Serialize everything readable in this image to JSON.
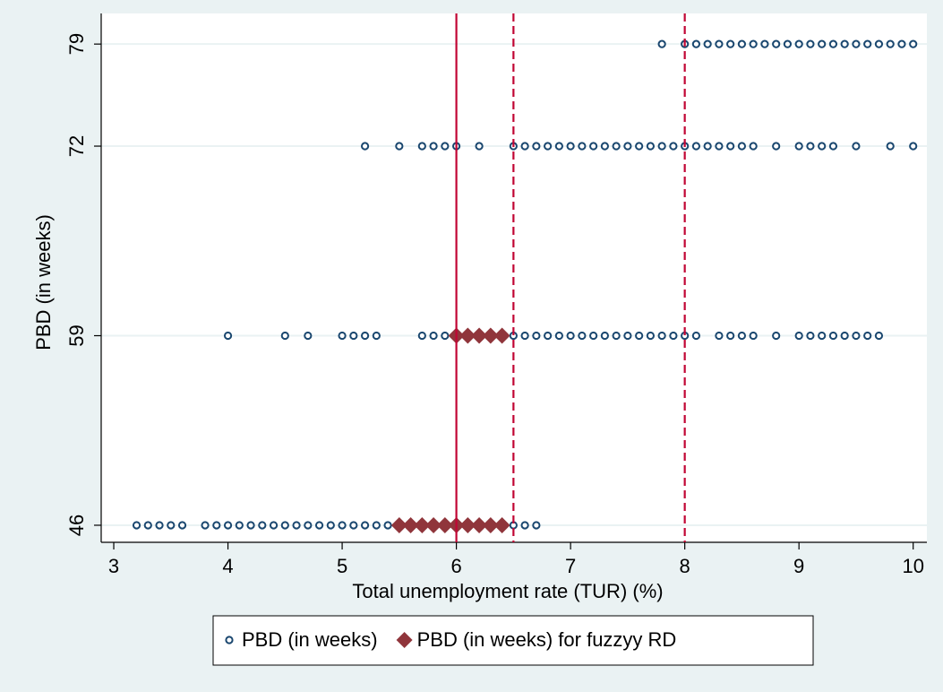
{
  "chart_data": {
    "type": "scatter",
    "xlabel": "Total unemployment rate (TUR) (%)",
    "ylabel": "PBD (in weeks)",
    "xlim": [
      2.89,
      10.12
    ],
    "ylim": [
      44.83,
      81.1
    ],
    "xticks": [
      3,
      4,
      5,
      6,
      7,
      8,
      9,
      10
    ],
    "yticks": [
      46,
      59,
      72,
      79
    ],
    "grid": true,
    "legend": "bottom",
    "xlines": [
      {
        "value": 6,
        "style": "solid",
        "color": "#c10534"
      },
      {
        "value": 6.5,
        "style": "dash",
        "color": "#c10534"
      },
      {
        "value": 8,
        "style": "dash",
        "color": "#c10534"
      }
    ],
    "series": [
      {
        "name": "PBD (in weeks)",
        "color": "#1a476f",
        "marker": "circle",
        "points": [
          [
            7.8,
            79
          ],
          [
            8.0,
            79
          ],
          [
            8.1,
            79
          ],
          [
            8.2,
            79
          ],
          [
            8.3,
            79
          ],
          [
            8.4,
            79
          ],
          [
            8.5,
            79
          ],
          [
            8.6,
            79
          ],
          [
            8.7,
            79
          ],
          [
            8.8,
            79
          ],
          [
            8.9,
            79
          ],
          [
            9.0,
            79
          ],
          [
            9.1,
            79
          ],
          [
            9.2,
            79
          ],
          [
            9.3,
            79
          ],
          [
            9.4,
            79
          ],
          [
            9.5,
            79
          ],
          [
            9.6,
            79
          ],
          [
            9.7,
            79
          ],
          [
            9.8,
            79
          ],
          [
            9.9,
            79
          ],
          [
            10.0,
            79
          ],
          [
            5.2,
            72
          ],
          [
            5.5,
            72
          ],
          [
            5.7,
            72
          ],
          [
            5.8,
            72
          ],
          [
            5.9,
            72
          ],
          [
            6.0,
            72
          ],
          [
            6.2,
            72
          ],
          [
            6.5,
            72
          ],
          [
            6.6,
            72
          ],
          [
            6.7,
            72
          ],
          [
            6.8,
            72
          ],
          [
            6.9,
            72
          ],
          [
            7.0,
            72
          ],
          [
            7.1,
            72
          ],
          [
            7.2,
            72
          ],
          [
            7.3,
            72
          ],
          [
            7.4,
            72
          ],
          [
            7.5,
            72
          ],
          [
            7.6,
            72
          ],
          [
            7.7,
            72
          ],
          [
            7.8,
            72
          ],
          [
            7.9,
            72
          ],
          [
            8.0,
            72
          ],
          [
            8.1,
            72
          ],
          [
            8.2,
            72
          ],
          [
            8.3,
            72
          ],
          [
            8.4,
            72
          ],
          [
            8.5,
            72
          ],
          [
            8.6,
            72
          ],
          [
            8.8,
            72
          ],
          [
            9.0,
            72
          ],
          [
            9.1,
            72
          ],
          [
            9.2,
            72
          ],
          [
            9.3,
            72
          ],
          [
            9.5,
            72
          ],
          [
            9.8,
            72
          ],
          [
            10.0,
            72
          ],
          [
            4.0,
            59
          ],
          [
            4.5,
            59
          ],
          [
            4.7,
            59
          ],
          [
            5.0,
            59
          ],
          [
            5.1,
            59
          ],
          [
            5.2,
            59
          ],
          [
            5.3,
            59
          ],
          [
            5.7,
            59
          ],
          [
            5.8,
            59
          ],
          [
            5.9,
            59
          ],
          [
            6.5,
            59
          ],
          [
            6.6,
            59
          ],
          [
            6.7,
            59
          ],
          [
            6.8,
            59
          ],
          [
            6.9,
            59
          ],
          [
            7.0,
            59
          ],
          [
            7.1,
            59
          ],
          [
            7.2,
            59
          ],
          [
            7.3,
            59
          ],
          [
            7.4,
            59
          ],
          [
            7.5,
            59
          ],
          [
            7.6,
            59
          ],
          [
            7.7,
            59
          ],
          [
            7.8,
            59
          ],
          [
            7.9,
            59
          ],
          [
            8.0,
            59
          ],
          [
            8.1,
            59
          ],
          [
            8.3,
            59
          ],
          [
            8.4,
            59
          ],
          [
            8.5,
            59
          ],
          [
            8.6,
            59
          ],
          [
            8.8,
            59
          ],
          [
            9.0,
            59
          ],
          [
            9.1,
            59
          ],
          [
            9.2,
            59
          ],
          [
            9.3,
            59
          ],
          [
            9.4,
            59
          ],
          [
            9.5,
            59
          ],
          [
            9.6,
            59
          ],
          [
            9.7,
            59
          ],
          [
            3.2,
            46
          ],
          [
            3.3,
            46
          ],
          [
            3.4,
            46
          ],
          [
            3.5,
            46
          ],
          [
            3.6,
            46
          ],
          [
            3.8,
            46
          ],
          [
            3.9,
            46
          ],
          [
            4.0,
            46
          ],
          [
            4.1,
            46
          ],
          [
            4.2,
            46
          ],
          [
            4.3,
            46
          ],
          [
            4.4,
            46
          ],
          [
            4.5,
            46
          ],
          [
            4.6,
            46
          ],
          [
            4.7,
            46
          ],
          [
            4.8,
            46
          ],
          [
            4.9,
            46
          ],
          [
            5.0,
            46
          ],
          [
            5.1,
            46
          ],
          [
            5.2,
            46
          ],
          [
            5.3,
            46
          ],
          [
            5.4,
            46
          ],
          [
            6.5,
            46
          ],
          [
            6.6,
            46
          ],
          [
            6.7,
            46
          ]
        ]
      },
      {
        "name": "PBD (in weeks) for fuzzyy RD",
        "color": "#90353b",
        "marker": "diamond",
        "points": [
          [
            6.0,
            59
          ],
          [
            6.1,
            59
          ],
          [
            6.2,
            59
          ],
          [
            6.3,
            59
          ],
          [
            6.4,
            59
          ],
          [
            5.5,
            46
          ],
          [
            5.6,
            46
          ],
          [
            5.7,
            46
          ],
          [
            5.8,
            46
          ],
          [
            5.9,
            46
          ],
          [
            6.0,
            46
          ],
          [
            6.1,
            46
          ],
          [
            6.2,
            46
          ],
          [
            6.3,
            46
          ],
          [
            6.4,
            46
          ]
        ]
      }
    ]
  }
}
